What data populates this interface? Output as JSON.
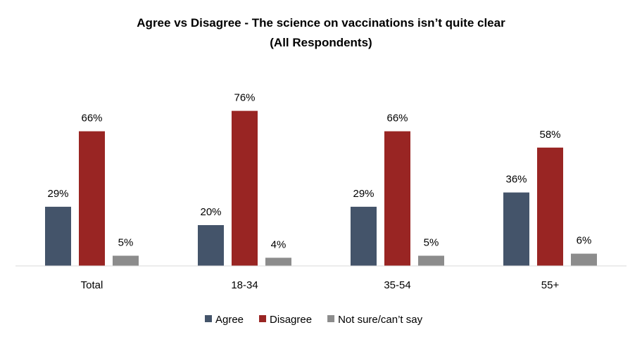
{
  "chart_data": {
    "type": "bar",
    "title": "Agree vs Disagree - The science on vaccinations isn’t quite clear",
    "subtitle": "(All Respondents)",
    "categories": [
      "Total",
      "18-34",
      "35-54",
      "55+"
    ],
    "series": [
      {
        "name": "Agree",
        "values": [
          29,
          20,
          29,
          36
        ],
        "labels": [
          "29%",
          "20%",
          "29%",
          "36%"
        ],
        "color": "#44546a"
      },
      {
        "name": "Disagree",
        "values": [
          66,
          76,
          66,
          58
        ],
        "labels": [
          "66%",
          "76%",
          "66%",
          "58%"
        ],
        "color": "#992523"
      },
      {
        "name": "Not sure/can’t say",
        "values": [
          5,
          4,
          5,
          6
        ],
        "labels": [
          "5%",
          "4%",
          "5%",
          "6%"
        ],
        "color": "#8c8c8c"
      }
    ],
    "ylim": [
      0,
      100
    ],
    "grid": false,
    "legend_position": "bottom"
  }
}
